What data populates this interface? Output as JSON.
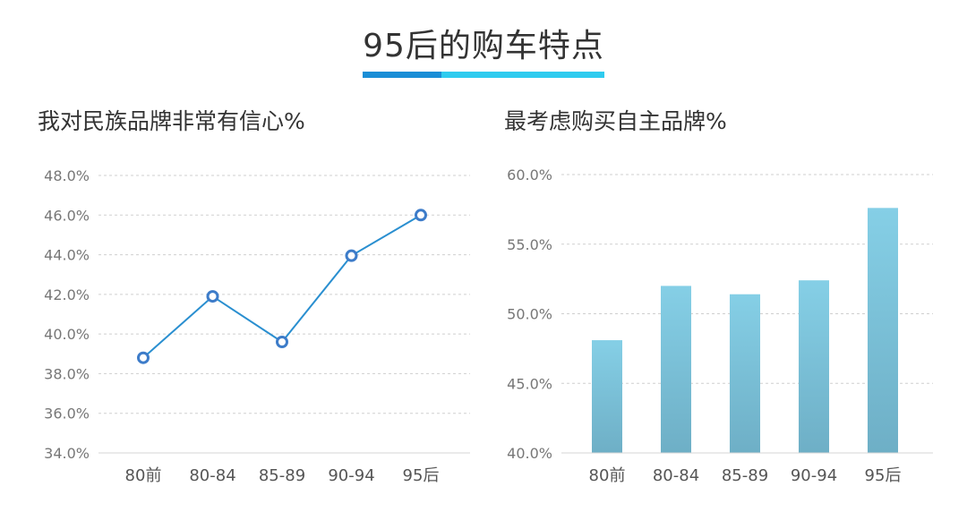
{
  "page": {
    "title": "95后的购车特点",
    "accent_colors": [
      "#1a8ed6",
      "#2ecbef"
    ]
  },
  "chart_data": [
    {
      "type": "line",
      "title": "我对民族品牌非常有信心%",
      "categories": [
        "80前",
        "80-84",
        "85-89",
        "90-94",
        "95后"
      ],
      "series": [
        {
          "values": [
            38.8,
            41.9,
            39.6,
            43.95,
            46.0
          ]
        }
      ],
      "ylim": [
        34.0,
        48.0
      ],
      "yticks": [
        "34.0%",
        "36.0%",
        "38.0%",
        "40.0%",
        "42.0%",
        "44.0%",
        "46.0%",
        "48.0%"
      ],
      "grid": true,
      "color": "#2a8fd0"
    },
    {
      "type": "bar",
      "title": "最考虑购买自主品牌%",
      "categories": [
        "80前",
        "80-84",
        "85-89",
        "90-94",
        "95后"
      ],
      "series": [
        {
          "values": [
            48.1,
            52.0,
            51.4,
            52.4,
            57.6
          ]
        }
      ],
      "ylim": [
        40.0,
        60.0
      ],
      "yticks": [
        "40.0%",
        "45.0%",
        "50.0%",
        "55.0%",
        "60.0%"
      ],
      "grid": true,
      "color_top": "#85cfe6",
      "color_bottom": "#6eafc6"
    }
  ]
}
